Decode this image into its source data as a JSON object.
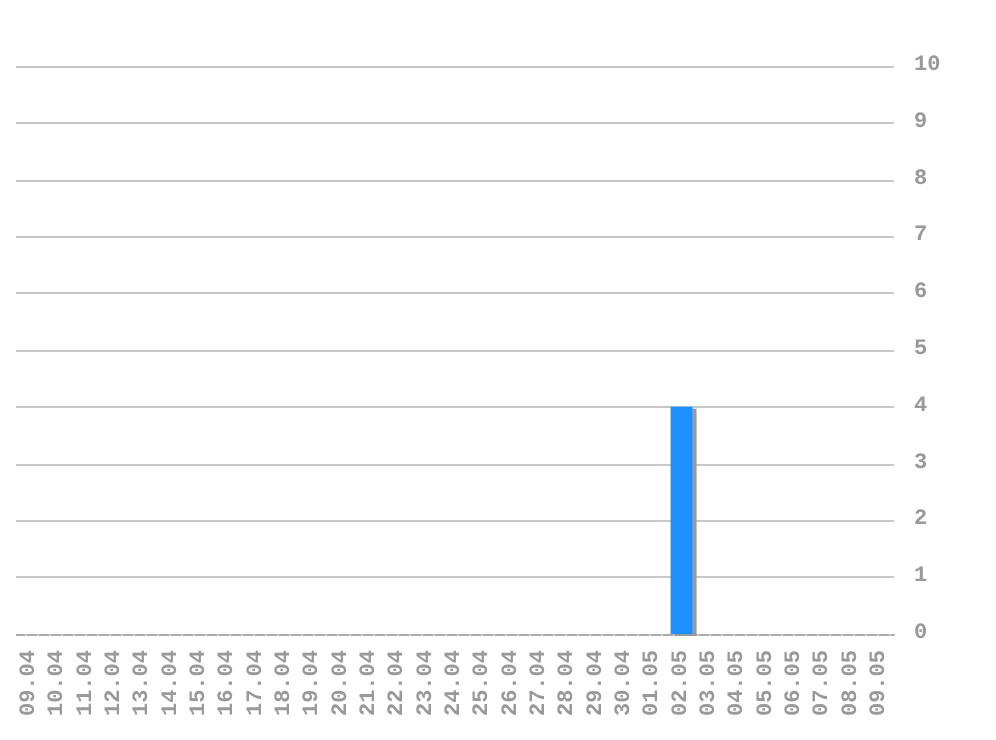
{
  "chart_data": {
    "type": "bar",
    "categories": [
      "09.04",
      "10.04",
      "11.04",
      "12.04",
      "13.04",
      "14.04",
      "15.04",
      "16.04",
      "17.04",
      "18.04",
      "19.04",
      "20.04",
      "21.04",
      "22.04",
      "23.04",
      "24.04",
      "25.04",
      "26.04",
      "27.04",
      "28.04",
      "29.04",
      "30.04",
      "01.05",
      "02.05",
      "03.05",
      "04.05",
      "05.05",
      "06.05",
      "07.05",
      "08.05",
      "09.05"
    ],
    "values": [
      0,
      0,
      0,
      0,
      0,
      0,
      0,
      0,
      0,
      0,
      0,
      0,
      0,
      0,
      0,
      0,
      0,
      0,
      0,
      0,
      0,
      0,
      0,
      4,
      0,
      0,
      0,
      0,
      0,
      0,
      0
    ],
    "color": "#1e90ff",
    "ylim": [
      0,
      10
    ],
    "yticks": [
      0,
      1,
      2,
      3,
      4,
      5,
      6,
      7,
      8,
      9,
      10
    ],
    "grid": true
  }
}
